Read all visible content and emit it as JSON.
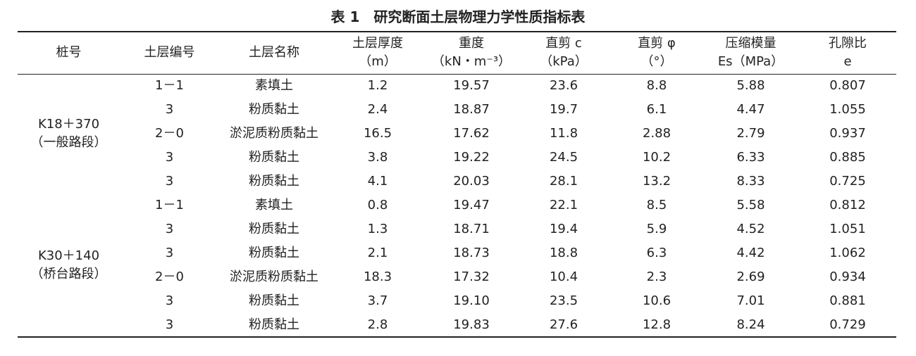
{
  "title": "表 1　研究断面土层物理力学性质指标表",
  "table": {
    "header": [
      [
        "桩号"
      ],
      [
        "土层编号"
      ],
      [
        "土层名称"
      ],
      [
        "土层厚度",
        "（m）"
      ],
      [
        "重度",
        "（kN・m⁻³）"
      ],
      [
        "直剪 c",
        "（kPa）"
      ],
      [
        "直剪 φ",
        "（°）"
      ],
      [
        "压缩模量",
        "Es（MPa）"
      ],
      [
        "孔隙比",
        "e"
      ]
    ],
    "groups": [
      {
        "stake": [
          "K18＋370",
          "（一般路段）"
        ],
        "rows": [
          [
            "1－1",
            "素填土",
            "1.2",
            "19.57",
            "23.6",
            "8.8",
            "5.88",
            "0.807"
          ],
          [
            "3",
            "粉质黏土",
            "2.4",
            "18.87",
            "19.7",
            "6.1",
            "4.47",
            "1.055"
          ],
          [
            "2－0",
            "淤泥质粉质黏土",
            "16.5",
            "17.62",
            "11.8",
            "2.88",
            "2.79",
            "0.937"
          ],
          [
            "3",
            "粉质黏土",
            "3.8",
            "19.22",
            "24.5",
            "10.2",
            "6.33",
            "0.885"
          ],
          [
            "3",
            "粉质黏土",
            "4.1",
            "20.03",
            "28.1",
            "13.2",
            "8.33",
            "0.725"
          ]
        ]
      },
      {
        "stake": [
          "K30＋140",
          "（桥台路段）"
        ],
        "rows": [
          [
            "1－1",
            "素填土",
            "0.8",
            "19.47",
            "22.1",
            "8.5",
            "5.58",
            "0.812"
          ],
          [
            "3",
            "粉质黏土",
            "1.3",
            "18.71",
            "19.4",
            "5.9",
            "4.52",
            "1.051"
          ],
          [
            "3",
            "粉质黏土",
            "2.1",
            "18.73",
            "18.8",
            "6.3",
            "4.42",
            "1.062"
          ],
          [
            "2－0",
            "淤泥质粉质黏土",
            "18.3",
            "17.32",
            "10.4",
            "2.3",
            "2.69",
            "0.934"
          ],
          [
            "3",
            "粉质黏土",
            "3.7",
            "19.10",
            "23.5",
            "10.6",
            "7.01",
            "0.881"
          ],
          [
            "3",
            "粉质黏土",
            "2.8",
            "19.83",
            "27.6",
            "12.8",
            "8.24",
            "0.729"
          ]
        ]
      }
    ]
  }
}
